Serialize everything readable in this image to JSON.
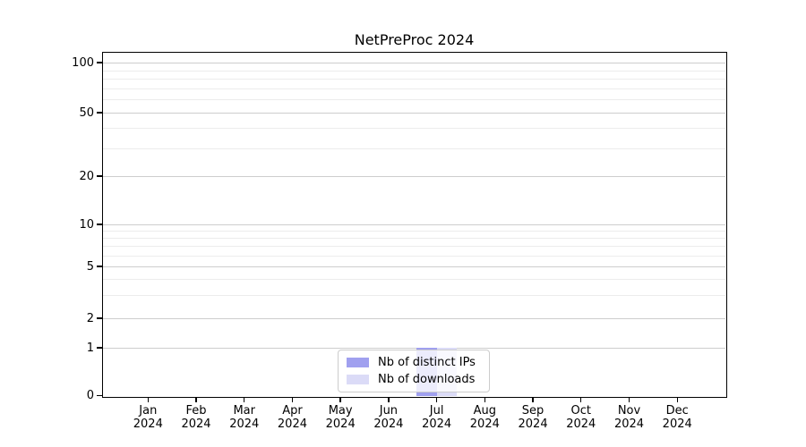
{
  "title": "NetPreProc 2024",
  "chart_data": {
    "type": "bar",
    "title": "NetPreProc 2024",
    "categories": [
      "Jan 2024",
      "Feb 2024",
      "Mar 2024",
      "Apr 2024",
      "May 2024",
      "Jun 2024",
      "Jul 2024",
      "Aug 2024",
      "Sep 2024",
      "Oct 2024",
      "Nov 2024",
      "Dec 2024"
    ],
    "series": [
      {
        "name": "Nb of distinct IPs",
        "color": "#a0a0ef",
        "values": [
          0,
          0,
          0,
          0,
          0,
          0,
          1,
          0,
          0,
          0,
          0,
          0
        ]
      },
      {
        "name": "Nb of downloads",
        "color": "#dbdbf7",
        "values": [
          0,
          0,
          0,
          0,
          0,
          0,
          1,
          0,
          0,
          0,
          0,
          0
        ]
      }
    ],
    "xlabel": "",
    "ylabel": "",
    "y_axis": {
      "scale": "asinh-like (linear 0-1, log above)",
      "major_ticks": [
        0,
        1,
        2,
        5,
        10,
        20,
        50,
        100
      ],
      "minor_gridlines": [
        3,
        4,
        6,
        7,
        8,
        9,
        30,
        40,
        60,
        70,
        80,
        90
      ],
      "ylim": [
        0,
        115
      ]
    },
    "grid": "horizontal major and minor gridlines",
    "legend_position": "lower center"
  },
  "legend": {
    "items": [
      {
        "label": "Nb of distinct IPs",
        "color": "#a0a0ef"
      },
      {
        "label": "Nb of downloads",
        "color": "#dbdbf7"
      }
    ]
  },
  "colors": {
    "axis": "#000000",
    "grid_major": "#cdcdcd",
    "grid_minor": "#ececec",
    "background": "#ffffff"
  }
}
